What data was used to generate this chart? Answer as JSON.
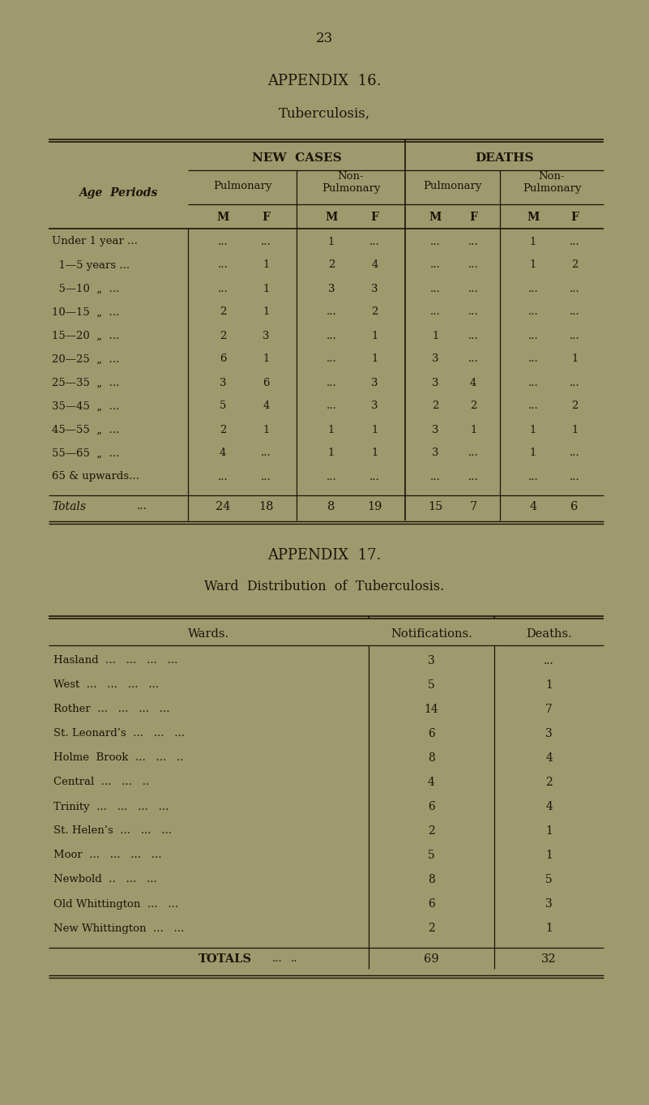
{
  "page_number": "23",
  "bg_color": "#9e9a6e",
  "text_color": "#1a1508",
  "appendix16_title": "APPENDIX  16.",
  "appendix16_subtitle": "Tuberculosis,",
  "age_periods": [
    "Under 1 year ...",
    "  1—5 years ...",
    "  5—10  „  ...",
    "10—15  „  ...",
    "15—20  „  ...",
    "20—25  „  ...",
    "25—35  „  ...",
    "35—45  „  ...",
    "45—55  „  ...",
    "55—65  „  ...",
    "65 & upwards..."
  ],
  "table1_data": [
    [
      "...",
      "...",
      "1",
      "...",
      "...",
      "...",
      "1",
      "..."
    ],
    [
      "...",
      "1",
      "2",
      "4",
      "...",
      "...",
      "1",
      "2"
    ],
    [
      "...",
      "1",
      "3",
      "3",
      "...",
      "...",
      "...",
      "..."
    ],
    [
      "2",
      "1",
      "...",
      "2",
      "...",
      "...",
      "...",
      "..."
    ],
    [
      "2",
      "3",
      "...",
      "1",
      "1",
      "...",
      "...",
      "..."
    ],
    [
      "6",
      "1",
      "...",
      "1",
      "3",
      "...",
      "...",
      "1"
    ],
    [
      "3",
      "6",
      "...",
      "3",
      "3",
      "4",
      "...",
      "..."
    ],
    [
      "5",
      "4",
      "...",
      "3",
      "2",
      "2",
      "...",
      "2"
    ],
    [
      "2",
      "1",
      "1",
      "1",
      "3",
      "1",
      "1",
      "1"
    ],
    [
      "4",
      "...",
      "1",
      "1",
      "3",
      "...",
      "1",
      "..."
    ],
    [
      "...",
      "...",
      "...",
      "...",
      "...",
      "...",
      "...",
      "..."
    ]
  ],
  "totals_row": [
    "24",
    "18",
    "8",
    "19",
    "15",
    "7",
    "4",
    "6"
  ],
  "appendix17_title": "APPENDIX  17.",
  "appendix17_subtitle": "Ward  Distribution  of  Tuberculosis.",
  "wards": [
    "Hasland",
    "West",
    "Rother",
    "St. Leonard’s",
    "Holme  Brook",
    "Central",
    "Trinity",
    "St. Helen’s",
    "Moor",
    "Newbold",
    "Old Whittington",
    "New Whittington"
  ],
  "ward_dots": [
    "  ...   ...   ...   ...",
    "  ...   ...   ...   ...",
    "  ...   ...   ...   ...",
    "  ...   ...   ...",
    "  ...   ...   ..",
    "  ...   ...   ..",
    "  ...   ...   ...   ...",
    "  ...   ...   ...",
    "  ...   ...   ...   ...",
    "  ..   ...   ...",
    "  ...   ...",
    "  ...   ..."
  ],
  "notifications": [
    "3",
    "5",
    "14",
    "6",
    "8",
    "4",
    "6",
    "2",
    "5",
    "8",
    "6",
    "2"
  ],
  "deaths": [
    "...",
    "1",
    "7",
    "3",
    "4",
    "2",
    "4",
    "1",
    "1",
    "5",
    "3",
    "1"
  ],
  "ward_totals_notif": "69",
  "ward_totals_deaths": "32"
}
